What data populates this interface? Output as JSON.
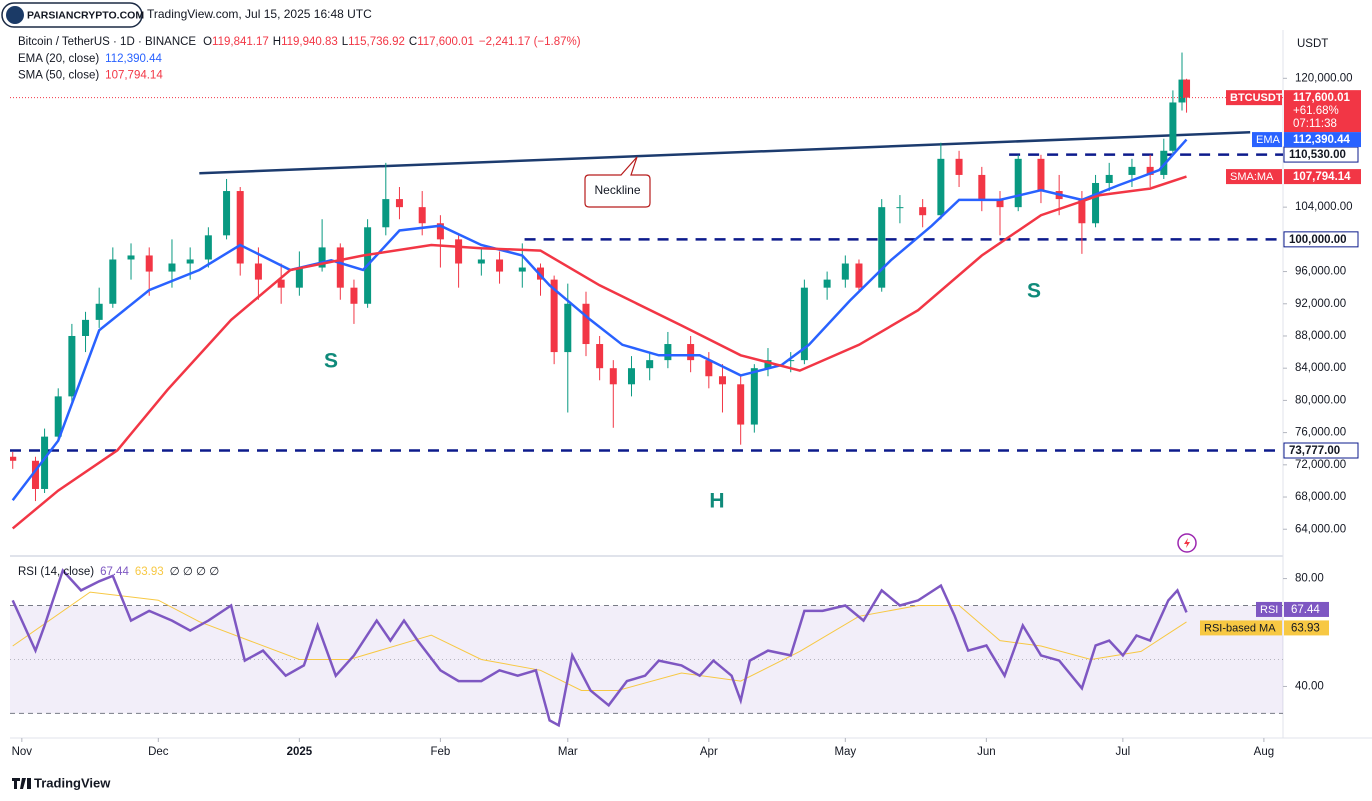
{
  "header": {
    "logo": "PARSIANCRYPTO.COM",
    "source": "TradingView.com, Jul 15, 2025 16:48 UTC",
    "footer": "TradingView"
  },
  "chart_data": [
    {
      "type": "candlestick",
      "title": "Bitcoin / TetherUS · 1D · BINANCE",
      "ohlc_labels": [
        [
          "O",
          "119,841.17"
        ],
        [
          "H",
          "119,940.83"
        ],
        [
          "L",
          "115,736.92"
        ],
        [
          "C",
          "117,600.01"
        ]
      ],
      "change_label": "−2,241.17 (−1.87%)",
      "y_axis_label": "USDT",
      "up_color": "#089981",
      "down_color": "#f23645",
      "x": [
        -2,
        3,
        5,
        8,
        11,
        14,
        17,
        20,
        24,
        28,
        33,
        37,
        41,
        45,
        48,
        52,
        57,
        61,
        66,
        70,
        73,
        76,
        80,
        83,
        88,
        92,
        96,
        101,
        105,
        110,
        114,
        117,
        120,
        124,
        127,
        130,
        134,
        138,
        142,
        147,
        151,
        154,
        158,
        161,
        164,
        169,
        172,
        177,
        181,
        184,
        189,
        193,
        198,
        202,
        206,
        211,
        215,
        219,
        224,
        228,
        233,
        236,
        239,
        244,
        248,
        251,
        253,
        255,
        256
      ],
      "open": [
        73000,
        72500,
        69000,
        75500,
        80500,
        88000,
        90000,
        92000,
        97500,
        98000,
        96000,
        97000,
        97500,
        100500,
        106000,
        97000,
        95000,
        94000,
        96500,
        99000,
        94000,
        92000,
        101500,
        105000,
        104000,
        102000,
        100000,
        97000,
        97500,
        96000,
        96500,
        95000,
        86000,
        92000,
        87000,
        84000,
        82000,
        84000,
        85000,
        87000,
        85000,
        83000,
        82000,
        77000,
        84000,
        85000,
        85000,
        94000,
        95000,
        97000,
        94000,
        104000,
        104000,
        103000,
        110000,
        108000,
        105000,
        104000,
        110000,
        106000,
        105000,
        102000,
        107000,
        108000,
        109000,
        108000,
        111000,
        117000,
        119841.17
      ],
      "high": [
        73600,
        73000,
        76500,
        81500,
        89500,
        91000,
        94000,
        99000,
        99500,
        99000,
        100000,
        99000,
        101500,
        107500,
        106500,
        99000,
        97000,
        98500,
        102500,
        99500,
        95000,
        102500,
        109500,
        106500,
        106000,
        103000,
        100500,
        99000,
        98500,
        99500,
        97000,
        95500,
        94500,
        93500,
        88000,
        85000,
        85500,
        86000,
        88500,
        88000,
        86000,
        84500,
        83000,
        84500,
        86500,
        86000,
        95000,
        96000,
        98000,
        97500,
        105000,
        105500,
        105000,
        112000,
        111000,
        109000,
        106000,
        110500,
        110500,
        108000,
        106000,
        108000,
        109500,
        110000,
        110500,
        112500,
        118500,
        123200,
        119940.83
      ],
      "low": [
        71500,
        67500,
        68500,
        75000,
        79500,
        86000,
        89000,
        91500,
        95000,
        93000,
        94000,
        95000,
        96500,
        100000,
        95500,
        92500,
        92000,
        93000,
        96000,
        92500,
        89500,
        91500,
        100500,
        102500,
        100500,
        96500,
        94000,
        95500,
        94500,
        94000,
        93000,
        84500,
        78500,
        85500,
        82500,
        76600,
        80500,
        82500,
        84000,
        83500,
        81500,
        78500,
        74500,
        76000,
        83000,
        83500,
        84500,
        92500,
        94000,
        93500,
        93500,
        102000,
        101500,
        102500,
        106500,
        103500,
        100500,
        103500,
        104500,
        103000,
        98200,
        101500,
        106000,
        106500,
        106500,
        107500,
        110500,
        116000,
        115736.92
      ],
      "close": [
        72500,
        69000,
        75500,
        80500,
        88000,
        90000,
        92000,
        97500,
        98000,
        96000,
        97000,
        97500,
        100500,
        106000,
        97000,
        95000,
        94000,
        96500,
        99000,
        94000,
        92000,
        101500,
        105000,
        104000,
        102000,
        100000,
        97000,
        97500,
        96000,
        96500,
        95000,
        86000,
        92000,
        87000,
        84000,
        82000,
        84000,
        85000,
        87000,
        85000,
        83000,
        82000,
        77000,
        84000,
        85000,
        85000,
        94000,
        95000,
        97000,
        94000,
        104000,
        104000,
        103000,
        110000,
        108000,
        105000,
        104000,
        110000,
        106000,
        105000,
        102000,
        107000,
        108000,
        109000,
        108000,
        111000,
        117000,
        119841.17,
        117600.01
      ],
      "last_badge": {
        "symbol": "BTCUSDT",
        "label": "117,600.01",
        "change": "+61.68%",
        "countdown": "07:11:38"
      },
      "lines": [
        {
          "name": "EMA (20, close)",
          "badge": "EMA",
          "value_label": "112,390.44",
          "color": "#2962ff",
          "x": [
            -2,
            8,
            17,
            28,
            39,
            48,
            59,
            68,
            75,
            83,
            92,
            101,
            110,
            116,
            125,
            132,
            140,
            149,
            158,
            167,
            173,
            182,
            191,
            200,
            206,
            215,
            224,
            233,
            241,
            250,
            256
          ],
          "values": [
            67600,
            75000,
            88700,
            93700,
            96200,
            99300,
            96200,
            97400,
            96200,
            101100,
            101700,
            99300,
            98000,
            94300,
            90000,
            86900,
            85600,
            85600,
            83100,
            84400,
            86900,
            92400,
            97400,
            101700,
            104900,
            104900,
            106100,
            104900,
            106700,
            108600,
            112390.44
          ]
        },
        {
          "name": "SMA (50, close)",
          "badge": "SMA:MA",
          "value_label": "107,794.14",
          "color": "#f23645",
          "x": [
            -2,
            8,
            21,
            32,
            46,
            59,
            75,
            90,
            101,
            114,
            127,
            145,
            158,
            171,
            184,
            197,
            211,
            224,
            237,
            248,
            256
          ],
          "values": [
            64100,
            68800,
            73800,
            81300,
            90000,
            96200,
            98000,
            99300,
            98900,
            98600,
            94300,
            89300,
            85600,
            83700,
            86900,
            91200,
            98000,
            103000,
            105500,
            106300,
            107794.14
          ]
        }
      ],
      "levels": [
        {
          "value": 110530,
          "label": "110,530.00",
          "x_start": 217
        },
        {
          "value": 100000,
          "label": "100,000.00",
          "x_start": 110.5
        },
        {
          "value": 73777,
          "label": "73,777.00",
          "x_start": -2.6
        }
      ],
      "neckline": {
        "label": "Neckline",
        "x": [
          39,
          270
        ],
        "values": [
          108200,
          113300
        ]
      },
      "annotations": [
        "S",
        "H",
        "S"
      ],
      "xlim": [
        -2.6,
        277.2
      ],
      "xticks": [
        {
          "value": 0,
          "label": "Nov"
        },
        {
          "value": 30,
          "label": "Dec"
        },
        {
          "value": 61,
          "label": "2025"
        },
        {
          "value": 92,
          "label": "Feb"
        },
        {
          "value": 120,
          "label": "Mar"
        },
        {
          "value": 151,
          "label": "Apr"
        },
        {
          "value": 181,
          "label": "May"
        },
        {
          "value": 212,
          "label": "Jun"
        },
        {
          "value": 242,
          "label": "Jul"
        },
        {
          "value": 273,
          "label": "Aug"
        }
      ],
      "ylim": [
        60800,
        126000
      ],
      "yticks": [
        {
          "value": 64000,
          "label": "64,000.00"
        },
        {
          "value": 68000,
          "label": "68,000.00"
        },
        {
          "value": 72000,
          "label": "72,000.00"
        },
        {
          "value": 76000,
          "label": "76,000.00"
        },
        {
          "value": 80000,
          "label": "80,000.00"
        },
        {
          "value": 84000,
          "label": "84,000.00"
        },
        {
          "value": 88000,
          "label": "88,000.00"
        },
        {
          "value": 92000,
          "label": "92,000.00"
        },
        {
          "value": 96000,
          "label": "96,000.00"
        },
        {
          "value": 104000,
          "label": "104,000.00"
        },
        {
          "value": 120000,
          "label": "120,000.00"
        }
      ]
    },
    {
      "type": "line",
      "title": "RSI (14, close)",
      "extra_legend": "∅ ∅ ∅ ∅",
      "series": [
        {
          "name": "RSI",
          "color": "#7e57c2",
          "value_label": "67.44",
          "x": [
            -2,
            3,
            5,
            9,
            13,
            17,
            20,
            24,
            28,
            33,
            37,
            41,
            46,
            49,
            53,
            58,
            62,
            65,
            69,
            73,
            78,
            81,
            84,
            87,
            92,
            96,
            101,
            105,
            109,
            113,
            116,
            118,
            121,
            125,
            129,
            133,
            137,
            140,
            145,
            149,
            152,
            156,
            158,
            160,
            164,
            169,
            172,
            176,
            181,
            185,
            189,
            193,
            197,
            202,
            205,
            208,
            212,
            216,
            220,
            224,
            228,
            233,
            236,
            239,
            242,
            245,
            248,
            252,
            254,
            256
          ],
          "values": [
            71.9,
            53.3,
            62.6,
            83,
            75.6,
            79,
            81,
            64.4,
            68,
            64.4,
            60.7,
            64.4,
            70,
            49.6,
            53.3,
            44,
            47.8,
            62.6,
            44,
            51.5,
            64.4,
            57,
            64.4,
            57,
            46,
            42,
            42,
            46,
            44,
            46,
            27.4,
            25.6,
            51.5,
            38.5,
            33,
            42,
            44,
            49.6,
            47.8,
            44,
            49.6,
            44,
            34.8,
            49.6,
            53.3,
            51.5,
            68,
            68,
            70,
            64.4,
            75.6,
            70,
            71.9,
            77.4,
            66.3,
            53.3,
            55.2,
            44,
            62.6,
            51.5,
            49.6,
            39.3,
            55.2,
            57,
            51.5,
            58.9,
            57,
            71.9,
            75.6,
            67.44
          ]
        },
        {
          "name": "RSI-based MA",
          "color": "#f7c843",
          "value_label": "63.93",
          "x": [
            -2,
            15,
            30,
            39,
            50,
            61,
            72,
            90,
            101,
            114,
            123,
            131,
            145,
            158,
            171,
            184,
            197,
            206,
            215,
            224,
            235,
            246,
            256
          ],
          "values": [
            55,
            75,
            72,
            64,
            57,
            50,
            50,
            59,
            50,
            46,
            38.5,
            38.5,
            45,
            42,
            53,
            66,
            70,
            70,
            57,
            55,
            50,
            53,
            63.93
          ]
        }
      ],
      "bands": [
        70,
        30
      ],
      "midline": 50,
      "ylim": [
        22,
        88
      ],
      "yticks": [
        {
          "value": 80,
          "label": "80.00"
        },
        {
          "value": 40,
          "label": "40.00"
        }
      ]
    }
  ]
}
